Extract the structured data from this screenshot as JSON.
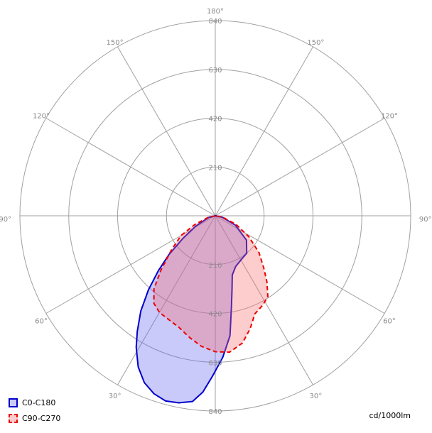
{
  "chart_data": {
    "type": "polar-area",
    "title": "",
    "unit": "cd/1000lm",
    "rlim": [
      0,
      840
    ],
    "radial_ticks": [
      210,
      420,
      630,
      840
    ],
    "angle_ticks": [
      "180°",
      "150°",
      "120°",
      "90°",
      "60°",
      "30°"
    ],
    "grid": true,
    "legend_position": "bottom-left",
    "series": [
      {
        "name": "C0-C180",
        "color": "#0000cc",
        "fill": "rgba(100,100,240,0.35)",
        "dash": "",
        "points": [
          [
            -90,
            0
          ],
          [
            -75,
            30
          ],
          [
            -62,
            95
          ],
          [
            -55,
            170
          ],
          [
            -50,
            260
          ],
          [
            -46,
            340
          ],
          [
            -42,
            430
          ],
          [
            -38,
            520
          ],
          [
            -34,
            600
          ],
          [
            -31,
            660
          ],
          [
            -27,
            730
          ],
          [
            -23,
            780
          ],
          [
            -19,
            810
          ],
          [
            -15,
            825
          ],
          [
            -11,
            820
          ],
          [
            -7,
            805
          ],
          [
            -4,
            760
          ],
          [
            -1,
            690
          ],
          [
            3,
            610
          ],
          [
            7,
            520
          ],
          [
            10,
            400
          ],
          [
            13,
            320
          ],
          [
            16,
            265
          ],
          [
            22,
            235
          ],
          [
            30,
            220
          ],
          [
            40,
            210
          ],
          [
            52,
            170
          ],
          [
            65,
            95
          ],
          [
            78,
            30
          ],
          [
            90,
            0
          ]
        ]
      },
      {
        "name": "C90-C270",
        "color": "#ee0000",
        "fill": "rgba(250,110,110,0.35)",
        "dash": "6 4",
        "points": [
          [
            -90,
            0
          ],
          [
            -78,
            30
          ],
          [
            -67,
            95
          ],
          [
            -60,
            170
          ],
          [
            -52,
            240
          ],
          [
            -45,
            330
          ],
          [
            -40,
            410
          ],
          [
            -35,
            460
          ],
          [
            -30,
            480
          ],
          [
            -24,
            490
          ],
          [
            -18,
            505
          ],
          [
            -12,
            535
          ],
          [
            -6,
            565
          ],
          [
            0,
            585
          ],
          [
            6,
            590
          ],
          [
            12,
            560
          ],
          [
            17,
            510
          ],
          [
            22,
            455
          ],
          [
            28,
            435
          ],
          [
            33,
            415
          ],
          [
            38,
            360
          ],
          [
            43,
            305
          ],
          [
            50,
            245
          ],
          [
            58,
            170
          ],
          [
            68,
            95
          ],
          [
            80,
            30
          ],
          [
            90,
            0
          ]
        ]
      }
    ]
  }
}
